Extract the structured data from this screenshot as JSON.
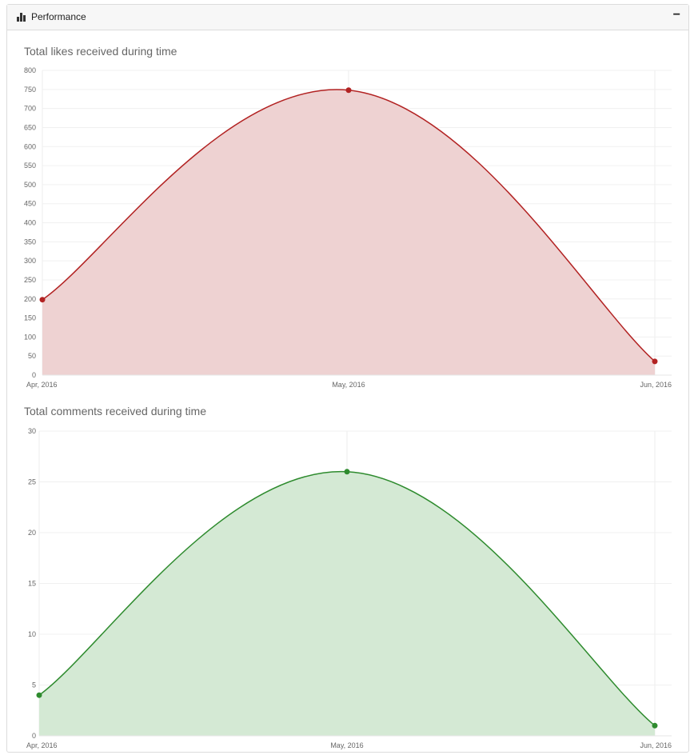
{
  "panel": {
    "title": "Performance",
    "icon": "bar-chart-icon",
    "collapse_label": "−"
  },
  "chart_data": [
    {
      "type": "area",
      "title": "Total likes received during time",
      "categories": [
        "Apr, 2016",
        "May, 2016",
        "Jun, 2016"
      ],
      "values": [
        198,
        748,
        36
      ],
      "ylim": [
        0,
        800
      ],
      "yticks": [
        0,
        50,
        100,
        150,
        200,
        250,
        300,
        350,
        400,
        450,
        500,
        550,
        600,
        650,
        700,
        750,
        800
      ],
      "color": "#b22222",
      "fill": "#eed2d2",
      "grid": true
    },
    {
      "type": "area",
      "title": "Total comments received during time",
      "categories": [
        "Apr, 2016",
        "May, 2016",
        "Jun, 2016"
      ],
      "values": [
        4,
        26,
        1
      ],
      "ylim": [
        0,
        30
      ],
      "yticks": [
        0,
        5,
        10,
        15,
        20,
        25,
        30
      ],
      "color": "#2e8b2e",
      "fill": "#d4e9d4",
      "grid": true
    }
  ]
}
